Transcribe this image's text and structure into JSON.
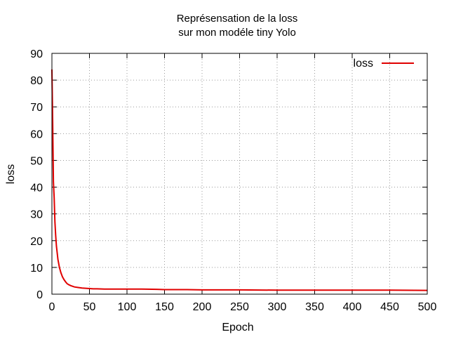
{
  "chart_data": {
    "type": "line",
    "title": [
      "Représensation de la loss",
      "sur mon modéle tiny Yolo"
    ],
    "xlabel": "Epoch",
    "ylabel": "loss",
    "xlim": [
      0,
      500
    ],
    "ylim": [
      0,
      90
    ],
    "x_ticks": [
      0,
      50,
      100,
      150,
      200,
      250,
      300,
      350,
      400,
      450,
      500
    ],
    "y_ticks": [
      0,
      10,
      20,
      30,
      40,
      50,
      60,
      70,
      80,
      90
    ],
    "grid": true,
    "legend_position": "top-right",
    "series": [
      {
        "name": "loss",
        "color": "#e00000",
        "x": [
          0,
          1,
          2,
          3,
          4,
          5,
          6,
          7,
          8,
          10,
          12,
          14,
          16,
          18,
          20,
          22,
          25,
          28,
          30,
          35,
          40,
          45,
          50,
          55,
          60,
          70,
          80,
          90,
          100,
          120,
          140,
          150,
          160,
          180,
          200,
          250,
          300,
          350,
          400,
          450,
          500
        ],
        "y": [
          84,
          65,
          42,
          36,
          27,
          22,
          18,
          15.5,
          13,
          10,
          8,
          6.5,
          5.5,
          4.7,
          4,
          3.6,
          3.2,
          2.9,
          2.7,
          2.5,
          2.3,
          2.2,
          2.1,
          2.0,
          2.0,
          1.9,
          1.9,
          1.9,
          1.9,
          1.9,
          1.8,
          1.7,
          1.7,
          1.7,
          1.6,
          1.6,
          1.5,
          1.5,
          1.5,
          1.5,
          1.4
        ]
      }
    ]
  }
}
